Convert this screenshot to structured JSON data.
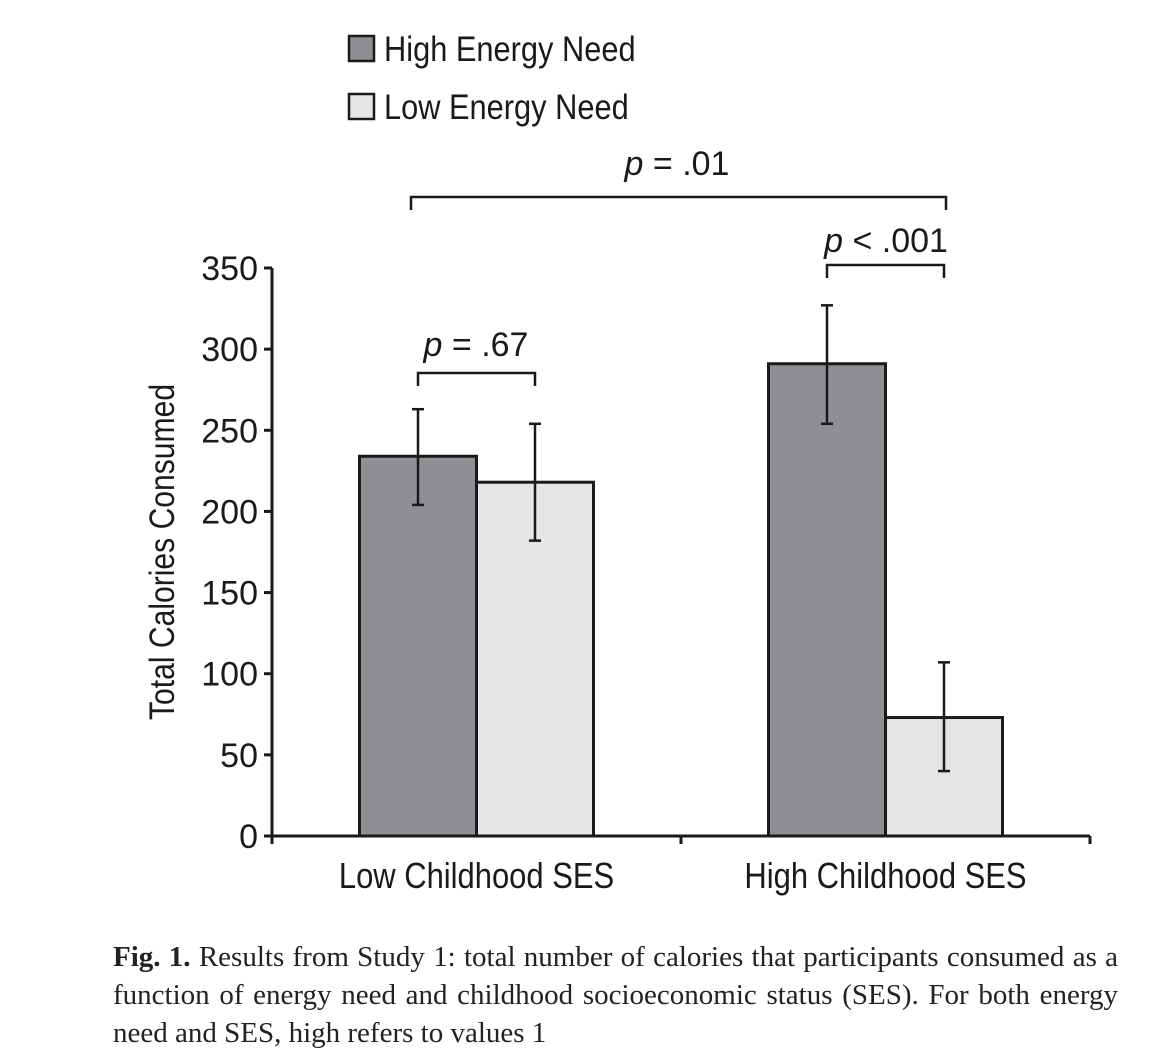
{
  "chart_data": {
    "type": "bar",
    "categories": [
      "Low Childhood SES",
      "High Childhood SES"
    ],
    "series": [
      {
        "name": "High Energy Need",
        "values": [
          234,
          291
        ],
        "error_low": [
          204,
          254
        ],
        "error_high": [
          263,
          327
        ],
        "color": "#8e8f93"
      },
      {
        "name": "Low Energy Need",
        "values": [
          218,
          73
        ],
        "error_low": [
          182,
          40
        ],
        "error_high": [
          254,
          107
        ],
        "color": "#e4e5e7"
      }
    ],
    "ylabel": "Total Calories Consumed",
    "xlabel": "",
    "ylim": [
      0,
      350
    ],
    "yticks": [
      "0",
      "50",
      "100",
      "150",
      "200",
      "250",
      "300",
      "350"
    ],
    "legend_position": "top-left",
    "grid": false,
    "annotations": [
      {
        "kind": "p-prefix",
        "italic": "p",
        "text": " = .67"
      },
      {
        "kind": "p-prefix",
        "italic": "p",
        "text": " < .001"
      },
      {
        "kind": "p-prefix",
        "italic": "p",
        "text": " = .01"
      }
    ]
  },
  "caption": {
    "label": "Fig. 1.",
    "text": "Results from Study 1: total number of calories that participants consumed as a function of energy need and childhood socioeconomic status (SES). For both energy need and SES, high refers to values 1"
  }
}
